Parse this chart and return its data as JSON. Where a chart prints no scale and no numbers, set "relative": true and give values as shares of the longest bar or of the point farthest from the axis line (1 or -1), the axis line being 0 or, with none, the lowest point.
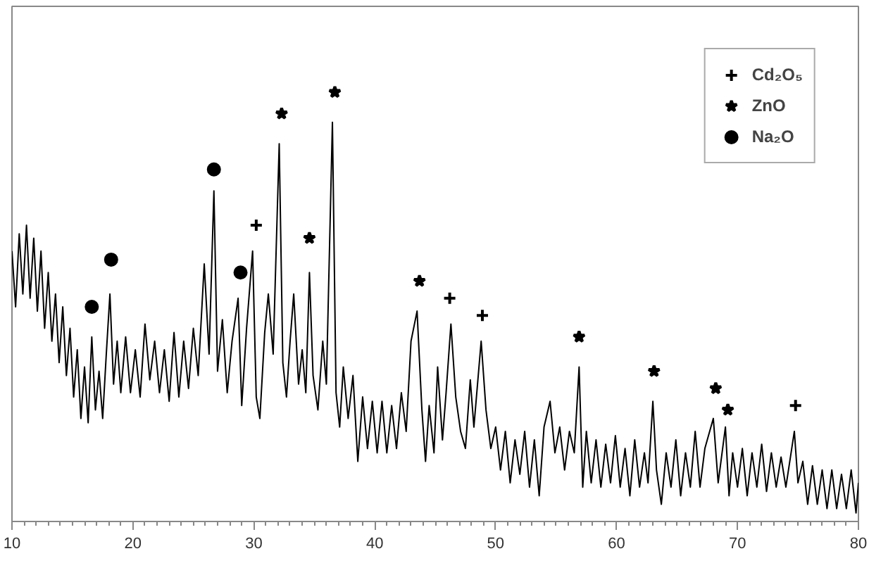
{
  "chart_data": {
    "type": "line",
    "relative": true,
    "xlim": [
      10,
      80
    ],
    "xticks": [
      10,
      20,
      30,
      40,
      50,
      60,
      70,
      80
    ],
    "grid": false,
    "legend": "top right",
    "series": [
      {
        "color": "#000000",
        "marker": "none",
        "line_style": "solid",
        "x": [
          10.0,
          10.3,
          10.6,
          10.9,
          11.2,
          11.5,
          11.8,
          12.1,
          12.4,
          12.7,
          13.0,
          13.3,
          13.6,
          13.9,
          14.2,
          14.5,
          14.8,
          15.1,
          15.4,
          15.7,
          16.0,
          16.3,
          16.6,
          16.9,
          17.2,
          17.5,
          17.8,
          18.1,
          18.4,
          18.7,
          19.0,
          19.4,
          19.8,
          20.2,
          20.6,
          21.0,
          21.4,
          21.8,
          22.2,
          22.6,
          23.0,
          23.4,
          23.8,
          24.2,
          24.6,
          25.0,
          25.4,
          25.9,
          26.3,
          26.7,
          27.0,
          27.4,
          27.8,
          28.2,
          28.7,
          29.0,
          29.4,
          29.9,
          30.2,
          30.5,
          30.9,
          31.2,
          31.6,
          32.1,
          32.4,
          32.7,
          33.0,
          33.3,
          33.7,
          34.0,
          34.3,
          34.6,
          34.9,
          35.3,
          35.7,
          36.0,
          36.5,
          36.8,
          37.1,
          37.4,
          37.8,
          38.2,
          38.6,
          39.0,
          39.4,
          39.8,
          40.2,
          40.6,
          41.0,
          41.4,
          41.8,
          42.2,
          42.6,
          43.0,
          43.5,
          43.9,
          44.2,
          44.5,
          44.9,
          45.2,
          45.6,
          45.9,
          46.3,
          46.7,
          47.1,
          47.5,
          47.9,
          48.2,
          48.8,
          49.2,
          49.6,
          50.0,
          50.4,
          50.8,
          51.2,
          51.6,
          52.0,
          52.4,
          52.8,
          53.2,
          53.6,
          54.0,
          54.5,
          54.9,
          55.3,
          55.7,
          56.1,
          56.5,
          56.9,
          57.2,
          57.5,
          57.9,
          58.3,
          58.7,
          59.1,
          59.5,
          59.9,
          60.3,
          60.7,
          61.1,
          61.5,
          61.9,
          62.3,
          62.6,
          63.0,
          63.3,
          63.7,
          64.1,
          64.5,
          64.9,
          65.3,
          65.7,
          66.1,
          66.5,
          66.9,
          67.3,
          68.0,
          68.4,
          69.0,
          69.3,
          69.6,
          70.0,
          70.4,
          70.8,
          71.2,
          71.6,
          72.0,
          72.4,
          72.8,
          73.2,
          73.6,
          74.0,
          74.7,
          75.0,
          75.4,
          75.8,
          76.2,
          76.6,
          77.0,
          77.4,
          77.8,
          78.2,
          78.6,
          79.0,
          79.4,
          79.8,
          80.0
        ],
        "values": [
          0.63,
          0.5,
          0.67,
          0.53,
          0.69,
          0.52,
          0.66,
          0.49,
          0.63,
          0.45,
          0.58,
          0.42,
          0.53,
          0.37,
          0.5,
          0.34,
          0.45,
          0.29,
          0.4,
          0.24,
          0.36,
          0.23,
          0.43,
          0.26,
          0.35,
          0.24,
          0.39,
          0.53,
          0.32,
          0.42,
          0.3,
          0.43,
          0.3,
          0.4,
          0.29,
          0.46,
          0.33,
          0.42,
          0.3,
          0.4,
          0.28,
          0.44,
          0.29,
          0.42,
          0.31,
          0.45,
          0.34,
          0.6,
          0.39,
          0.77,
          0.35,
          0.47,
          0.3,
          0.42,
          0.52,
          0.27,
          0.45,
          0.63,
          0.29,
          0.24,
          0.44,
          0.53,
          0.39,
          0.88,
          0.37,
          0.29,
          0.42,
          0.53,
          0.32,
          0.4,
          0.3,
          0.58,
          0.34,
          0.26,
          0.42,
          0.32,
          0.93,
          0.3,
          0.22,
          0.36,
          0.24,
          0.34,
          0.14,
          0.29,
          0.17,
          0.28,
          0.16,
          0.28,
          0.16,
          0.27,
          0.17,
          0.3,
          0.21,
          0.42,
          0.49,
          0.26,
          0.14,
          0.27,
          0.16,
          0.36,
          0.19,
          0.3,
          0.46,
          0.29,
          0.21,
          0.17,
          0.33,
          0.22,
          0.42,
          0.26,
          0.17,
          0.22,
          0.12,
          0.21,
          0.09,
          0.19,
          0.11,
          0.21,
          0.08,
          0.19,
          0.06,
          0.22,
          0.28,
          0.16,
          0.22,
          0.12,
          0.21,
          0.16,
          0.36,
          0.08,
          0.21,
          0.09,
          0.19,
          0.08,
          0.18,
          0.09,
          0.2,
          0.08,
          0.17,
          0.06,
          0.19,
          0.08,
          0.16,
          0.09,
          0.28,
          0.12,
          0.04,
          0.16,
          0.08,
          0.19,
          0.06,
          0.16,
          0.08,
          0.21,
          0.08,
          0.17,
          0.24,
          0.09,
          0.22,
          0.06,
          0.16,
          0.08,
          0.17,
          0.06,
          0.16,
          0.08,
          0.18,
          0.07,
          0.16,
          0.08,
          0.15,
          0.08,
          0.21,
          0.09,
          0.14,
          0.04,
          0.13,
          0.04,
          0.12,
          0.03,
          0.12,
          0.03,
          0.11,
          0.03,
          0.12,
          0.02,
          0.09
        ]
      },
      {
        "type": "scatter",
        "name": "Cd₂O₅",
        "color": "#000000",
        "marker": "cross",
        "x": [
          30.2,
          46.2,
          48.9,
          74.8
        ],
        "values": [
          0.69,
          0.52,
          0.48,
          0.27
        ]
      },
      {
        "type": "scatter",
        "name": "ZnO",
        "color": "#000000",
        "marker": "star",
        "x": [
          32.3,
          34.6,
          36.7,
          43.7,
          56.9,
          63.1,
          68.2,
          69.2
        ],
        "values": [
          0.95,
          0.66,
          1.0,
          0.56,
          0.43,
          0.35,
          0.31,
          0.26
        ]
      },
      {
        "type": "scatter",
        "name": "Na₂O",
        "color": "#000000",
        "marker": "circle",
        "x": [
          16.6,
          18.2,
          26.7,
          28.9
        ],
        "values": [
          0.5,
          0.61,
          0.82,
          0.58
        ]
      }
    ]
  }
}
